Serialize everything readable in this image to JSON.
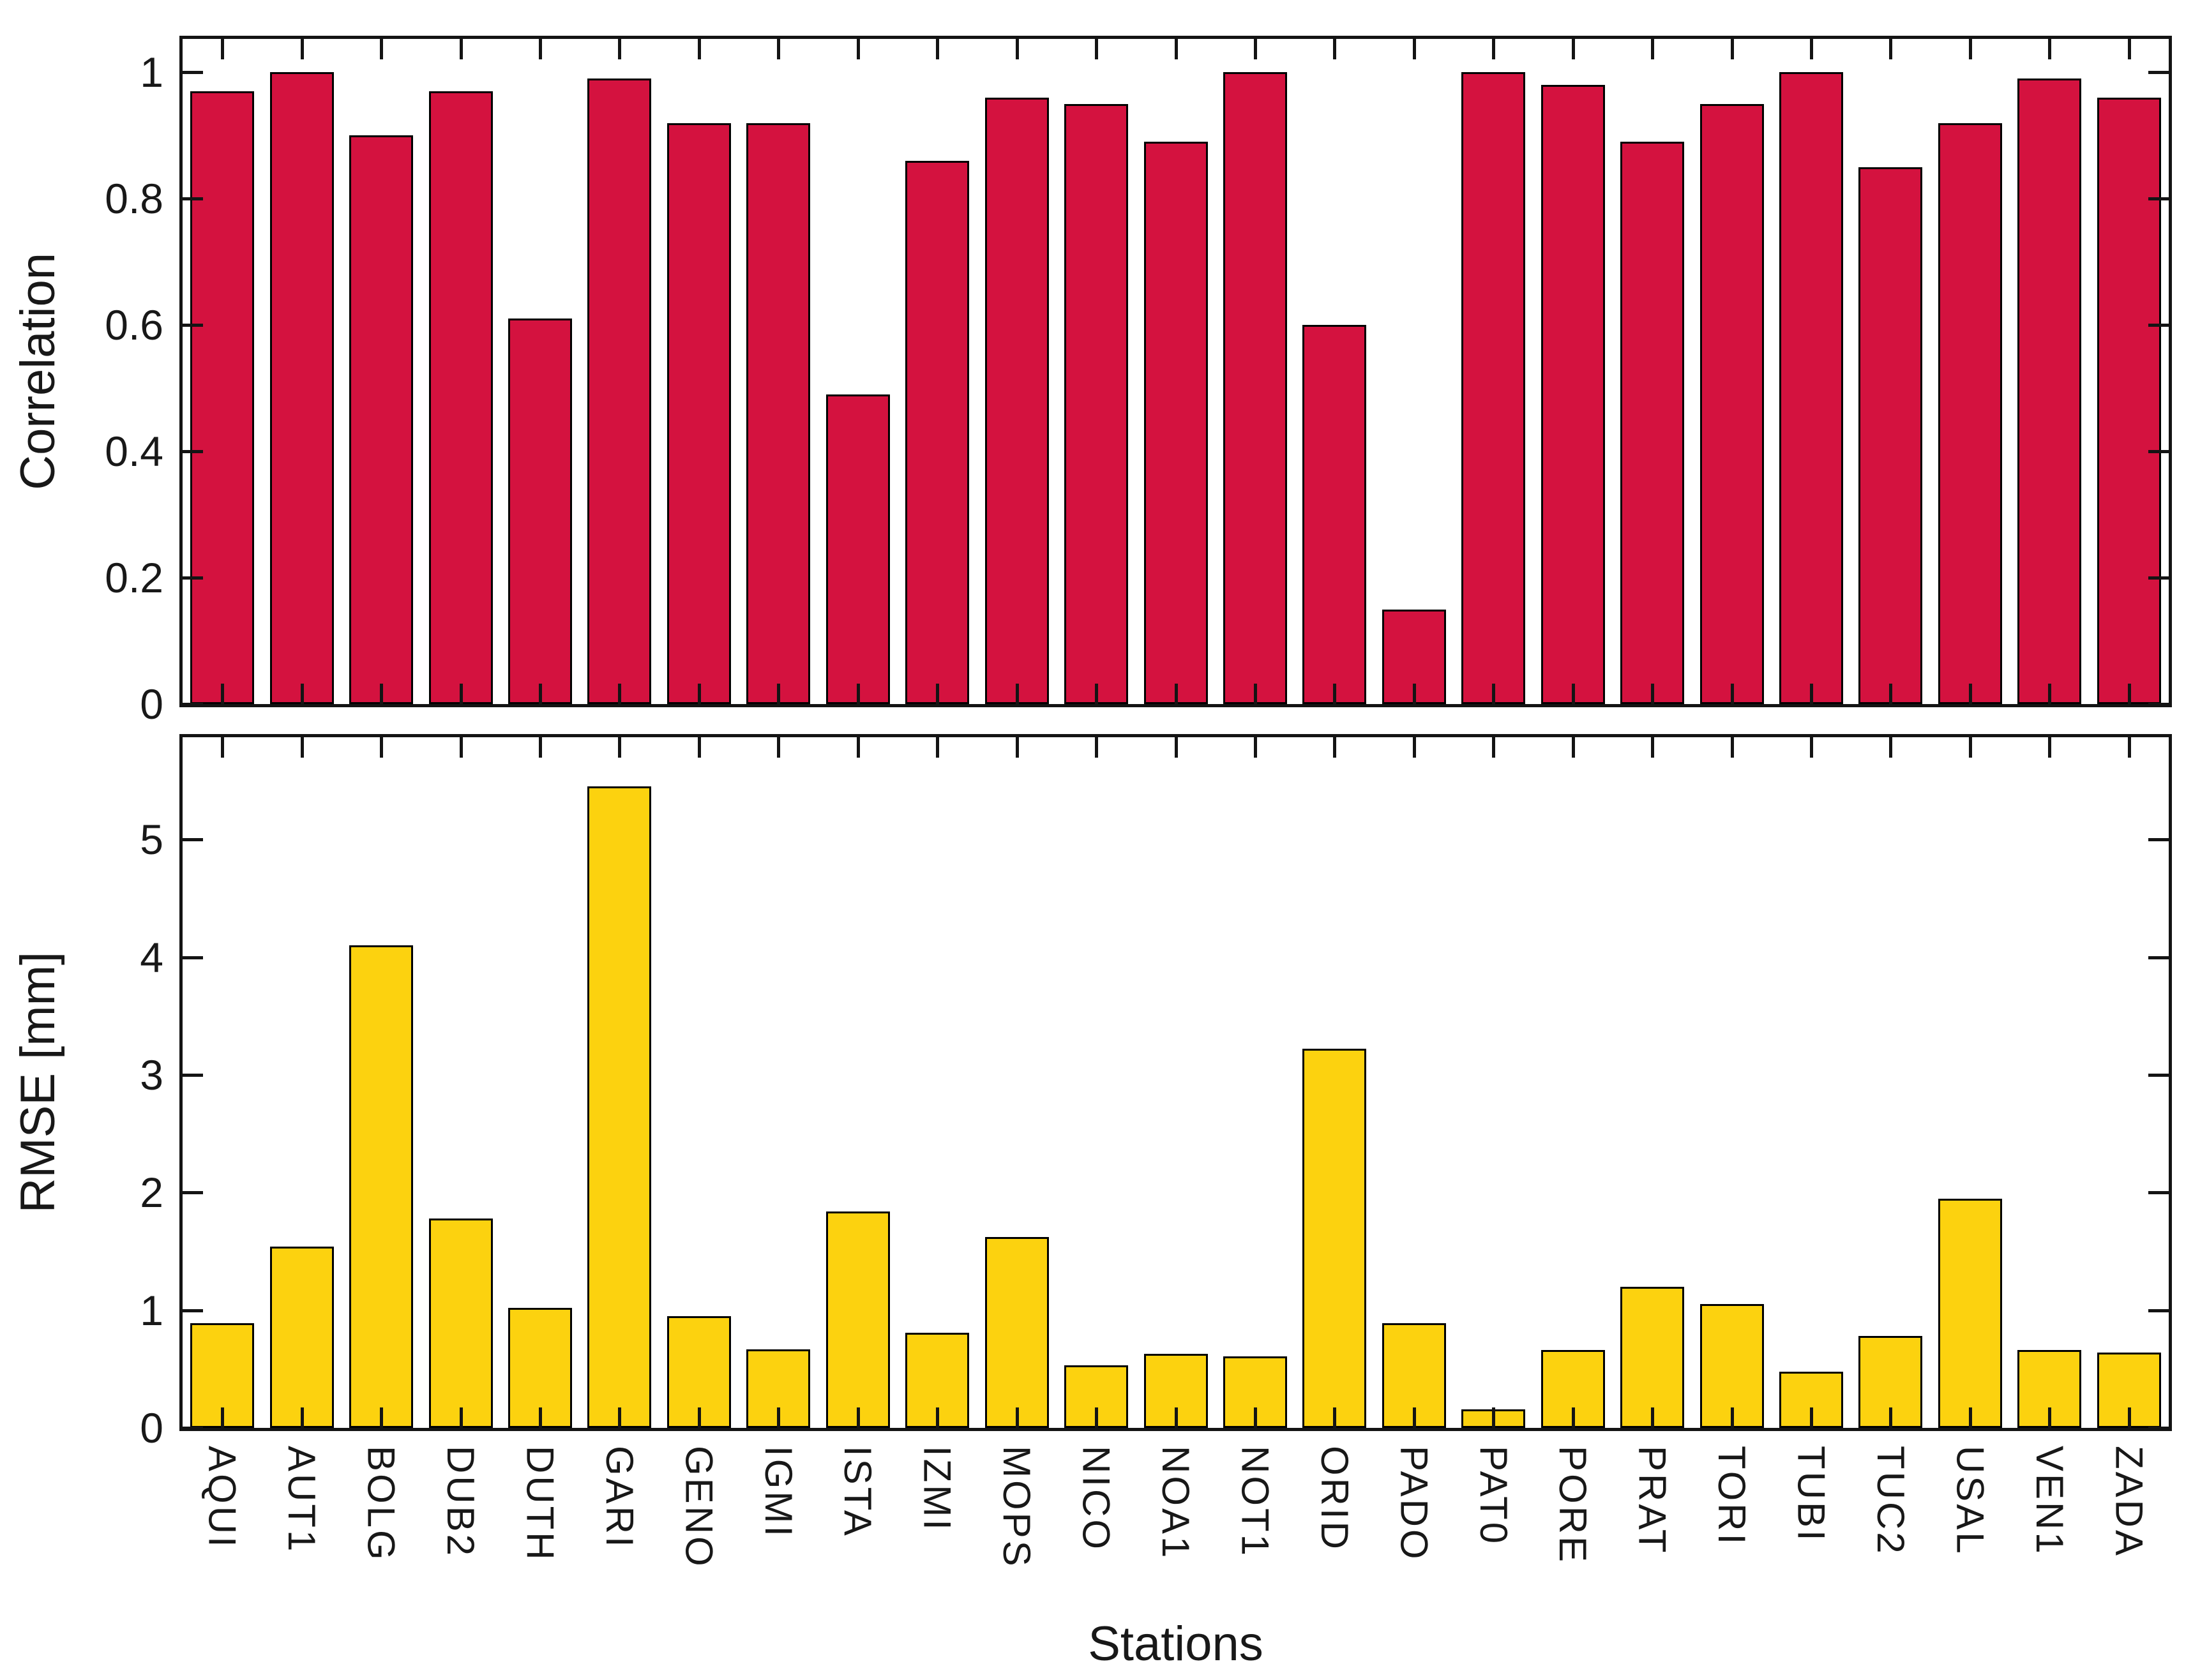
{
  "figure": {
    "background": "#ffffff",
    "axis_color": "#141414",
    "xlabel": "Stations"
  },
  "chart_data": [
    {
      "type": "bar",
      "panel": "top",
      "title": "",
      "ylabel": "Correlation",
      "xlabel": "",
      "categories": [
        "AQUI",
        "AUT1",
        "BOLG",
        "DUB2",
        "DUTH",
        "GARI",
        "GENO",
        "IGMI",
        "ISTA",
        "IZMI",
        "MOPS",
        "NICO",
        "NOA1",
        "NOT1",
        "ORID",
        "PADO",
        "PAT0",
        "PORE",
        "PRAT",
        "TORI",
        "TUBI",
        "TUC2",
        "USAL",
        "VEN1",
        "ZADA"
      ],
      "values": [
        0.97,
        1.0,
        0.9,
        0.97,
        0.61,
        0.99,
        0.92,
        0.92,
        0.49,
        0.86,
        0.96,
        0.95,
        0.89,
        1.0,
        0.6,
        0.15,
        1.0,
        0.98,
        0.89,
        0.95,
        1.0,
        0.85,
        0.92,
        0.99,
        0.96
      ],
      "ylim": [
        0,
        1.053
      ],
      "yticks": [
        0,
        0.2,
        0.4,
        0.6,
        0.8,
        1
      ],
      "ytick_labels": [
        "0",
        "0.2",
        "0.4",
        "0.6",
        "0.8",
        "1"
      ],
      "bar_color": "#d4123f",
      "bar_edge_color": "#000000",
      "bar_width_ratio": 0.8,
      "grid": false,
      "legend": null,
      "show_x_tick_labels": false
    },
    {
      "type": "bar",
      "panel": "bottom",
      "title": "",
      "ylabel": "RMSE [mm]",
      "xlabel": "Stations",
      "categories": [
        "AQUI",
        "AUT1",
        "BOLG",
        "DUB2",
        "DUTH",
        "GARI",
        "GENO",
        "IGMI",
        "ISTA",
        "IZMI",
        "MOPS",
        "NICO",
        "NOA1",
        "NOT1",
        "ORID",
        "PADO",
        "PAT0",
        "PORE",
        "PRAT",
        "TORI",
        "TUBI",
        "TUC2",
        "USAL",
        "VEN1",
        "ZADA"
      ],
      "values": [
        0.89,
        1.54,
        4.1,
        1.78,
        1.02,
        5.45,
        0.95,
        0.67,
        1.84,
        0.81,
        1.62,
        0.53,
        0.63,
        0.61,
        3.22,
        0.89,
        0.16,
        0.66,
        1.2,
        1.05,
        0.48,
        0.78,
        1.95,
        0.66,
        0.64
      ],
      "ylim": [
        0,
        5.87
      ],
      "yticks": [
        0,
        1,
        2,
        3,
        4,
        5
      ],
      "ytick_labels": [
        "0",
        "1",
        "2",
        "3",
        "4",
        "5"
      ],
      "bar_color": "#fcd20f",
      "bar_edge_color": "#000000",
      "bar_width_ratio": 0.8,
      "grid": false,
      "legend": null,
      "show_x_tick_labels": true
    }
  ]
}
